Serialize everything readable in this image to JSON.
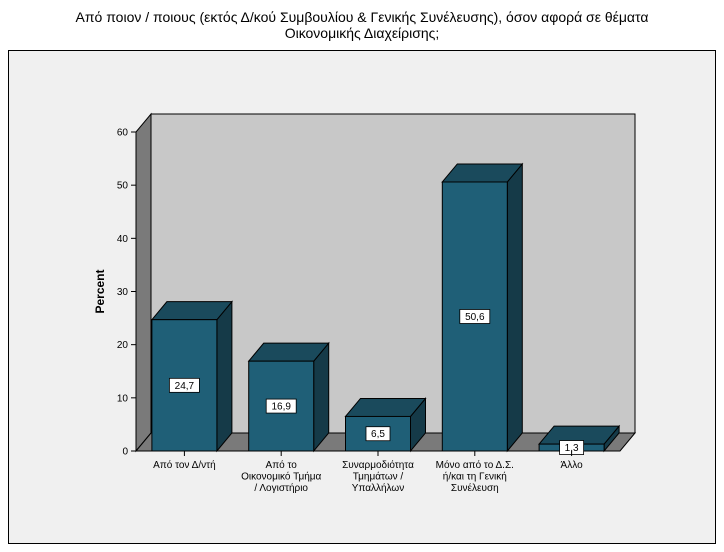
{
  "chart_data": {
    "type": "bar",
    "title_lines": [
      "Από ποιον / ποιους (εκτός Δ/κού Συμβουλίου & Γενικής Συνέλευσης), όσον αφορά σε θέματα",
      "Οικονομικής Διαχείρισης;"
    ],
    "xlabel": "",
    "ylabel": "Percent",
    "ylim": [
      0,
      60
    ],
    "yticks": [
      0,
      10,
      20,
      30,
      40,
      50,
      60
    ],
    "categories": [
      [
        "Από τον Δ/ντή"
      ],
      [
        "Από το",
        "Οικονομικό Τμήμα",
        "/ Λογιστήριο"
      ],
      [
        "Συναρμοδιότητα",
        "Τμημάτων /",
        "Υπαλλήλων"
      ],
      [
        "Μόνο από το Δ.Σ.",
        "ή/και τη Γενική",
        "Συνέλευση"
      ],
      [
        "Άλλο"
      ]
    ],
    "values": [
      24.7,
      16.9,
      6.5,
      50.6,
      1.3
    ],
    "value_labels": [
      "24,7",
      "16,9",
      "6,5",
      "50,6",
      "1,3"
    ],
    "grid": false,
    "style": "3d",
    "colors": {
      "bar_front": "#1f5f77",
      "bar_top": "#1a4a5c",
      "bar_side": "#153a48",
      "wall": "#c8c8c8",
      "floor": "#7a7a7a",
      "frame_bg": "#f0f0f0"
    }
  }
}
